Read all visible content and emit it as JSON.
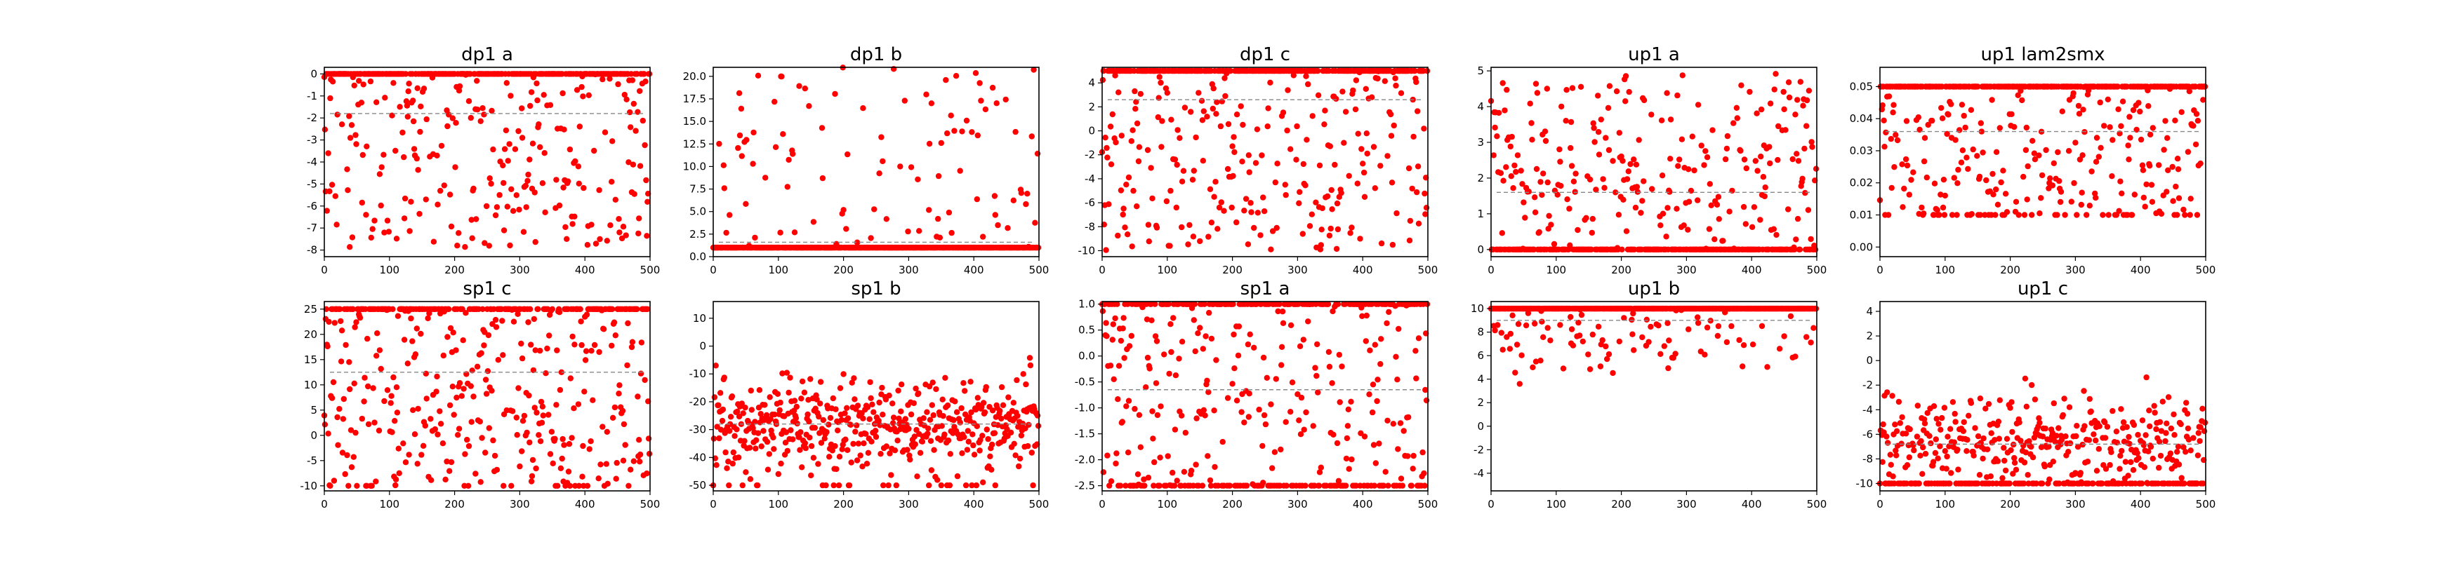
{
  "chart_data": [
    {
      "type": "scatter",
      "title": "dp1 a",
      "xlim": [
        0,
        500
      ],
      "ylim": [
        -8.3,
        0.3
      ],
      "xticks": [
        0,
        100,
        200,
        300,
        400,
        500
      ],
      "yticks": [
        0,
        -1,
        -2,
        -3,
        -4,
        -5,
        -6,
        -7,
        -8
      ],
      "mean": -1.8,
      "saturation": [
        {
          "y": 0,
          "fraction": 0.5
        }
      ],
      "scatter_range": [
        -8,
        0
      ],
      "color": "#ff0000"
    },
    {
      "type": "scatter",
      "title": "dp1 b",
      "xlim": [
        0,
        500
      ],
      "ylim": [
        0,
        21
      ],
      "xticks": [
        0,
        100,
        200,
        300,
        400,
        500
      ],
      "yticks": [
        0.0,
        2.5,
        5.0,
        7.5,
        10.0,
        12.5,
        15.0,
        17.5,
        20.0
      ],
      "mean": 1.6,
      "saturation": [
        {
          "y": 1,
          "fraction": 0.82
        }
      ],
      "scatter_range": [
        1,
        21
      ],
      "color": "#ff0000"
    },
    {
      "type": "scatter",
      "title": "dp1 c",
      "xlim": [
        0,
        500
      ],
      "ylim": [
        -10.5,
        5.3
      ],
      "xticks": [
        0,
        100,
        200,
        300,
        400,
        500
      ],
      "yticks": [
        4,
        2,
        0,
        -2,
        -4,
        -6,
        -8,
        -10
      ],
      "mean": 2.6,
      "saturation": [
        {
          "y": 5,
          "fraction": 0.5
        }
      ],
      "scatter_range": [
        -10,
        5
      ],
      "color": "#ff0000"
    },
    {
      "type": "scatter",
      "title": "up1 a",
      "xlim": [
        0,
        500
      ],
      "ylim": [
        -0.2,
        5.1
      ],
      "xticks": [
        0,
        100,
        200,
        300,
        400,
        500
      ],
      "yticks": [
        0,
        1,
        2,
        3,
        4,
        5
      ],
      "mean": 1.6,
      "saturation": [
        {
          "y": 0,
          "fraction": 0.5
        }
      ],
      "scatter_range": [
        0,
        5
      ],
      "color": "#ff0000"
    },
    {
      "type": "scatter",
      "title": "up1 lam2smx",
      "xlim": [
        0,
        500
      ],
      "ylim": [
        -0.003,
        0.056
      ],
      "xticks": [
        0,
        100,
        200,
        300,
        400,
        500
      ],
      "yticks": [
        0.0,
        0.01,
        0.02,
        0.03,
        0.04,
        0.05
      ],
      "mean": 0.036,
      "saturation": [
        {
          "y": 0.05,
          "fraction": 0.45
        },
        {
          "y": 0.01,
          "fraction": 0.08
        }
      ],
      "scatter_range": [
        0.01,
        0.05
      ],
      "color": "#ff0000"
    },
    {
      "type": "scatter",
      "title": "sp1 c",
      "xlim": [
        0,
        500
      ],
      "ylim": [
        -11,
        26.5
      ],
      "xticks": [
        0,
        100,
        200,
        300,
        400,
        500
      ],
      "yticks": [
        25,
        20,
        15,
        10,
        5,
        0,
        -5,
        -10
      ],
      "mean": 12.5,
      "saturation": [
        {
          "y": 25,
          "fraction": 0.35
        },
        {
          "y": -10,
          "fraction": 0.03
        }
      ],
      "scatter_range": [
        -10,
        25
      ],
      "color": "#ff0000"
    },
    {
      "type": "scatter",
      "title": "sp1 b",
      "xlim": [
        0,
        500
      ],
      "ylim": [
        -52,
        16
      ],
      "xticks": [
        0,
        100,
        200,
        300,
        400,
        500
      ],
      "yticks": [
        10,
        0,
        -10,
        -20,
        -30,
        -40,
        -50
      ],
      "mean": -28,
      "saturation": [
        {
          "y": -50,
          "fraction": 0.04
        }
      ],
      "scatter_range": [
        -50,
        13
      ],
      "center": -28,
      "color": "#ff0000"
    },
    {
      "type": "scatter",
      "title": "sp1 a",
      "xlim": [
        0,
        500
      ],
      "ylim": [
        -2.6,
        1.05
      ],
      "xticks": [
        0,
        100,
        200,
        300,
        400,
        500
      ],
      "yticks": [
        1.0,
        0.5,
        0.0,
        -0.5,
        -1.0,
        -1.5,
        -2.0,
        -2.5
      ],
      "mean": -0.65,
      "saturation": [
        {
          "y": 1,
          "fraction": 0.35
        },
        {
          "y": -2.5,
          "fraction": 0.22
        }
      ],
      "scatter_range": [
        -2.5,
        1
      ],
      "color": "#ff0000"
    },
    {
      "type": "scatter",
      "title": "up1 b",
      "xlim": [
        0,
        500
      ],
      "ylim": [
        -5.5,
        10.6
      ],
      "xticks": [
        0,
        100,
        200,
        300,
        400,
        500
      ],
      "yticks": [
        10,
        8,
        6,
        4,
        2,
        0,
        -2,
        -4
      ],
      "mean": 9.0,
      "saturation": [
        {
          "y": 10,
          "fraction": 0.75
        }
      ],
      "scatter_range": [
        -5,
        10
      ],
      "center": 8.5,
      "color": "#ff0000"
    },
    {
      "type": "scatter",
      "title": "up1 c",
      "xlim": [
        0,
        500
      ],
      "ylim": [
        -10.6,
        4.8
      ],
      "xticks": [
        0,
        100,
        200,
        300,
        400,
        500
      ],
      "yticks": [
        4,
        2,
        0,
        -2,
        -4,
        -6,
        -8,
        -10
      ],
      "mean": -6.8,
      "saturation": [
        {
          "y": -10,
          "fraction": 0.3
        }
      ],
      "scatter_range": [
        -10,
        4.5
      ],
      "center": -6.5,
      "color": "#ff0000"
    }
  ]
}
